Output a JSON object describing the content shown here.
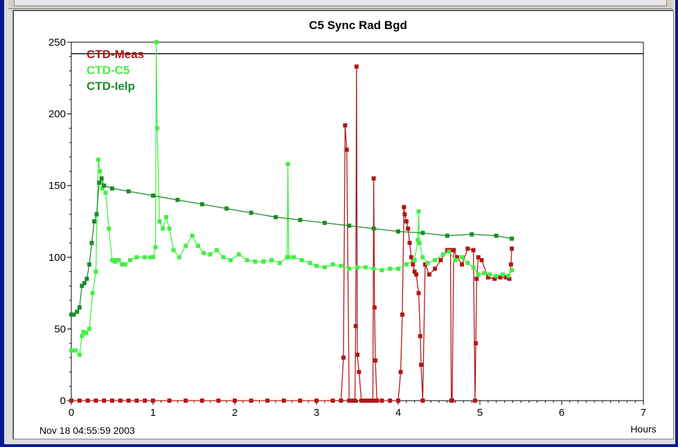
{
  "chart_data": {
    "type": "line",
    "title": "C5 Sync Rad Bgd",
    "xlabel": "Hours",
    "ylabel": "",
    "start_timestamp": "Nov 18 04:55:59 2003",
    "xlim": [
      0,
      7
    ],
    "ylim": [
      0,
      250
    ],
    "xticks": [
      0,
      1,
      2,
      3,
      4,
      5,
      6,
      7
    ],
    "yticks": [
      0,
      50,
      100,
      150,
      200,
      250
    ],
    "grid": true,
    "legend_position": "top-left",
    "reference_line": 242,
    "series": [
      {
        "name": "CTD-Meas",
        "color": "#b01818",
        "x": [
          0.0,
          0.1,
          0.2,
          0.3,
          0.4,
          0.5,
          0.6,
          0.7,
          0.8,
          0.9,
          1.0,
          1.2,
          1.4,
          1.6,
          1.8,
          2.0,
          2.2,
          2.4,
          2.6,
          2.8,
          3.0,
          3.2,
          3.3,
          3.33,
          3.35,
          3.37,
          3.4,
          3.45,
          3.47,
          3.48,
          3.49,
          3.5,
          3.52,
          3.55,
          3.6,
          3.65,
          3.69,
          3.7,
          3.71,
          3.72,
          3.74,
          3.8,
          3.9,
          4.0,
          4.03,
          4.05,
          4.07,
          4.08,
          4.1,
          4.12,
          4.14,
          4.16,
          4.18,
          4.2,
          4.22,
          4.25,
          4.27,
          4.28,
          4.3,
          4.33,
          4.38,
          4.45,
          4.52,
          4.6,
          4.64,
          4.65,
          4.66,
          4.68,
          4.72,
          4.78,
          4.85,
          4.92,
          4.94,
          4.95,
          4.96,
          4.98,
          5.02,
          5.1,
          5.18,
          5.25,
          5.32,
          5.36,
          5.38,
          5.39
        ],
        "values": [
          0,
          0,
          0,
          0,
          0,
          0,
          0,
          0,
          0,
          0,
          0,
          0,
          0,
          0,
          0,
          0,
          0,
          0,
          0,
          0,
          0,
          0,
          0,
          30,
          192,
          175,
          0,
          0,
          0,
          52,
          233,
          32,
          20,
          0,
          0,
          0,
          0,
          155,
          65,
          28,
          0,
          0,
          0,
          0,
          20,
          60,
          135,
          130,
          125,
          120,
          110,
          100,
          95,
          90,
          88,
          75,
          45,
          25,
          0,
          95,
          88,
          92,
          98,
          105,
          105,
          0,
          0,
          105,
          100,
          95,
          106,
          105,
          0,
          40,
          85,
          100,
          98,
          86,
          85,
          86,
          86,
          85,
          95,
          106
        ]
      },
      {
        "name": "CTD-C5",
        "color": "#44ee44",
        "x": [
          0.0,
          0.05,
          0.1,
          0.13,
          0.15,
          0.18,
          0.22,
          0.26,
          0.3,
          0.33,
          0.35,
          0.38,
          0.42,
          0.46,
          0.5,
          0.53,
          0.54,
          0.55,
          0.58,
          0.62,
          0.66,
          0.72,
          0.8,
          0.9,
          0.97,
          1.0,
          1.03,
          1.04,
          1.05,
          1.08,
          1.12,
          1.16,
          1.2,
          1.25,
          1.32,
          1.4,
          1.48,
          1.55,
          1.62,
          1.7,
          1.78,
          1.86,
          1.95,
          2.05,
          2.15,
          2.25,
          2.35,
          2.45,
          2.55,
          2.64,
          2.65,
          2.66,
          2.72,
          2.82,
          2.92,
          3.0,
          3.1,
          3.2,
          3.3,
          3.4,
          3.5,
          3.6,
          3.7,
          3.8,
          3.9,
          4.0,
          4.1,
          4.2,
          4.24,
          4.25,
          4.26,
          4.3,
          4.36,
          4.45,
          4.55,
          4.62,
          4.7,
          4.78,
          4.85,
          4.92,
          4.98,
          5.05,
          5.12,
          5.2,
          5.28,
          5.35,
          5.39
        ],
        "values": [
          35,
          35,
          32,
          45,
          48,
          47,
          50,
          75,
          90,
          168,
          160,
          148,
          145,
          120,
          98,
          97,
          97,
          98,
          98,
          95,
          95,
          98,
          100,
          100,
          100,
          100,
          107,
          250,
          190,
          125,
          120,
          128,
          120,
          105,
          100,
          108,
          115,
          108,
          103,
          102,
          105,
          100,
          98,
          102,
          98,
          97,
          97,
          98,
          96,
          100,
          165,
          100,
          100,
          98,
          96,
          94,
          93,
          95,
          94,
          92,
          93,
          93,
          92,
          91,
          92,
          92,
          95,
          98,
          112,
          132,
          110,
          100,
          96,
          98,
          102,
          104,
          98,
          100,
          96,
          93,
          88,
          89,
          88,
          87,
          88,
          87,
          91
        ]
      },
      {
        "name": "CTD-Ielp",
        "color": "#1b8c2a",
        "x": [
          0.0,
          0.03,
          0.07,
          0.1,
          0.13,
          0.16,
          0.19,
          0.22,
          0.25,
          0.28,
          0.31,
          0.34,
          0.37,
          0.4,
          0.5,
          0.7,
          1.0,
          1.3,
          1.6,
          1.9,
          2.2,
          2.5,
          2.8,
          3.1,
          3.4,
          3.7,
          4.0,
          4.3,
          4.6,
          4.9,
          5.2,
          5.39
        ],
        "values": [
          60,
          60,
          62,
          65,
          80,
          82,
          85,
          95,
          110,
          125,
          130,
          152,
          155,
          150,
          148,
          146,
          143,
          140,
          137,
          134,
          131,
          128,
          126,
          124,
          122,
          120,
          118,
          117,
          115,
          116,
          115,
          113
        ]
      }
    ]
  }
}
